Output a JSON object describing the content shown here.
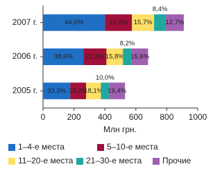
{
  "chart_data": {
    "type": "stacked-bar-horizontal",
    "x_label": "Млн грн.",
    "categories": [
      "2007 г.",
      "2006 г.",
      "2005 г."
    ],
    "series": [
      {
        "name": "1–4-е места",
        "color": "#1f6fc5",
        "values": [
          400,
          262,
          176
        ],
        "shares": [
          {
            "value": 44,
            "label": "44,0%"
          },
          {
            "value": 38.6,
            "label": "38,6%"
          },
          {
            "value": 33.3,
            "label": "33,3%"
          }
        ]
      },
      {
        "name": "5–10-е места",
        "color": "#a0103a",
        "values": [
          175,
          148,
          102
        ],
        "shares": [
          {
            "value": 19.2,
            "label": "19,2%"
          },
          {
            "value": 21.8,
            "label": "21,8%"
          },
          {
            "value": 19.2,
            "label": "19,2%"
          }
        ]
      },
      {
        "name": "11–20-е места",
        "color": "#ffe066",
        "values": [
          143,
          107,
          96
        ],
        "shares": [
          {
            "value": 15.7,
            "label": "15,7%"
          },
          {
            "value": 15.8,
            "label": "15,8%"
          },
          {
            "value": 18.1,
            "label": "18,1%"
          }
        ]
      },
      {
        "name": "21–30-е места",
        "color": "#20a8a0",
        "values": [
          76,
          56,
          53
        ],
        "shares": [
          {
            "value": 8.4,
            "label": "8,4%"
          },
          {
            "value": 8.2,
            "label": "8,2%"
          },
          {
            "value": 10,
            "label": "10,0%"
          }
        ]
      },
      {
        "name": "Прочие",
        "color": "#a060b0",
        "values": [
          116,
          106,
          103
        ],
        "shares": [
          {
            "value": 12.7,
            "label": "12,7%"
          },
          {
            "value": 15.6,
            "label": "15,6%"
          },
          {
            "value": 19.4,
            "label": "19,4%"
          }
        ]
      }
    ],
    "xlim": [
      0,
      1000
    ],
    "xticks": [
      0,
      200,
      400,
      600,
      800,
      1000
    ]
  }
}
